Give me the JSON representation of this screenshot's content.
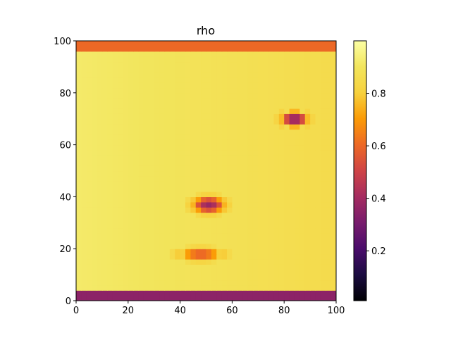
{
  "chart_data": {
    "type": "heatmap",
    "title": "rho",
    "xlabel": "",
    "ylabel": "",
    "xlim": [
      0,
      100
    ],
    "ylim": [
      0,
      100
    ],
    "grid": false,
    "x_ticks": [
      0,
      20,
      40,
      60,
      80,
      100
    ],
    "y_ticks": [
      0,
      20,
      40,
      60,
      80,
      100
    ],
    "colormap": "inferno",
    "colorbar": {
      "range": [
        0.01,
        1.0
      ],
      "ticks": [
        0.2,
        0.4,
        0.6,
        0.8
      ],
      "tick_labels": [
        "0.2",
        "0.4",
        "0.6",
        "0.8"
      ]
    },
    "background_value": 0.88,
    "features": [
      {
        "name": "low-density blob upper right",
        "cx": 84,
        "cy": 70,
        "rx": 6,
        "ry": 3.5,
        "value": 0.35
      },
      {
        "name": "low-density blob center",
        "cx": 51,
        "cy": 37,
        "rx": 7,
        "ry": 3.5,
        "value": 0.38
      },
      {
        "name": "low-density blob lower",
        "cx": 48,
        "cy": 18,
        "rx": 9,
        "ry": 2.5,
        "value": 0.55
      }
    ],
    "bands": [
      {
        "name": "top boundary",
        "y_range": [
          97,
          100
        ],
        "value": 0.6
      },
      {
        "name": "bottom boundary",
        "y_range": [
          0,
          4
        ],
        "value": 0.35
      }
    ]
  }
}
